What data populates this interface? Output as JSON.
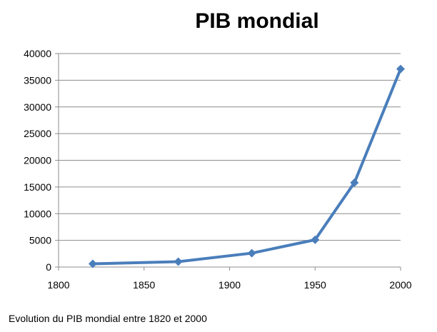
{
  "chart_data": {
    "type": "line",
    "title": "PIB mondial",
    "xlabel": "",
    "ylabel": "",
    "xlim": [
      1800,
      2000
    ],
    "ylim": [
      0,
      40000
    ],
    "xticks": [
      "1800",
      "1850",
      "1900",
      "1950",
      "2000"
    ],
    "yticks": [
      "0",
      "5000",
      "10000",
      "15000",
      "20000",
      "25000",
      "30000",
      "35000",
      "40000"
    ],
    "grid": "horizontal",
    "legend": "none",
    "line_color": "#4a7ebb",
    "series": [
      {
        "x": [
          1820,
          1870,
          1913,
          1950,
          1973,
          2000
        ],
        "values": [
          600,
          1000,
          2600,
          5100,
          15800,
          37100
        ]
      }
    ]
  },
  "caption": "Evolution du PIB mondial entre 1820 et 2000"
}
